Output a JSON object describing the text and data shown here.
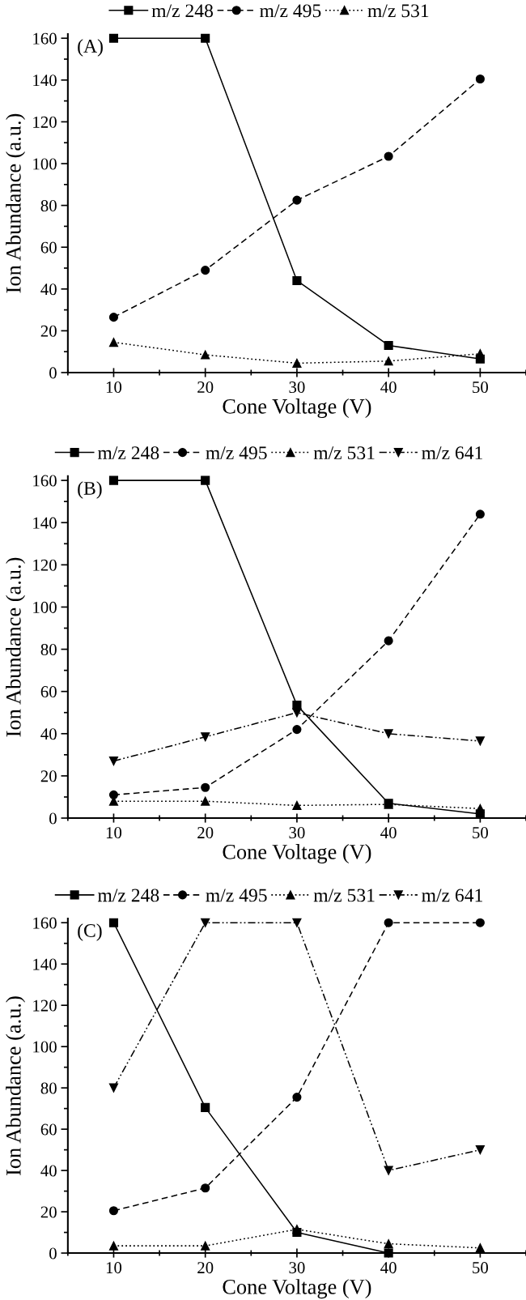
{
  "chart_data": [
    {
      "type": "line",
      "annotations": [
        "(A)"
      ],
      "xlabel": "Cone Voltage (V)",
      "ylabel": "Ion Abundance (a.u.)",
      "x": [
        10,
        20,
        30,
        40,
        50
      ],
      "xlim": [
        5,
        55
      ],
      "ylim": [
        0,
        162
      ],
      "xticks": [
        {
          "value": 5,
          "label": null
        },
        10,
        {
          "value": 15,
          "label": null
        },
        20,
        {
          "value": 25,
          "label": null
        },
        30,
        {
          "value": 35,
          "label": null
        },
        40,
        {
          "value": 45,
          "label": null
        },
        50,
        {
          "value": 55,
          "label": null
        }
      ],
      "yticks": [
        0,
        {
          "value": 10,
          "label": null
        },
        20,
        {
          "value": 30,
          "label": null
        },
        40,
        {
          "value": 50,
          "label": null
        },
        60,
        {
          "value": 70,
          "label": null
        },
        80,
        {
          "value": 90,
          "label": null
        },
        100,
        {
          "value": 110,
          "label": null
        },
        120,
        {
          "value": 130,
          "label": null
        },
        140,
        {
          "value": 150,
          "label": null
        },
        160
      ],
      "legend": "top",
      "grid": false,
      "series": [
        {
          "name": "m/z 248",
          "color": "#000000",
          "marker": "square",
          "line_style": "solid",
          "values": [
            160,
            160,
            44,
            13,
            6.5
          ]
        },
        {
          "name": "m/z 495",
          "color": "#000000",
          "marker": "circle",
          "line_style": "dashed",
          "values": [
            26.5,
            49,
            82.5,
            103.5,
            140.5
          ]
        },
        {
          "name": "m/z 531",
          "color": "#000000",
          "marker": "triangle",
          "line_style": "dotted",
          "values": [
            14.5,
            8.5,
            4.5,
            5.5,
            9
          ]
        }
      ]
    },
    {
      "type": "line",
      "annotations": [
        "(B)"
      ],
      "xlabel": "Cone Voltage (V)",
      "ylabel": "Ion Abundance (a.u.)",
      "x": [
        10,
        20,
        30,
        40,
        50
      ],
      "xlim": [
        5,
        55
      ],
      "ylim": [
        0,
        162
      ],
      "xticks": [
        {
          "value": 5,
          "label": null
        },
        10,
        {
          "value": 15,
          "label": null
        },
        20,
        {
          "value": 25,
          "label": null
        },
        30,
        {
          "value": 35,
          "label": null
        },
        40,
        {
          "value": 45,
          "label": null
        },
        50,
        {
          "value": 55,
          "label": null
        }
      ],
      "yticks": [
        0,
        {
          "value": 10,
          "label": null
        },
        20,
        {
          "value": 30,
          "label": null
        },
        40,
        {
          "value": 50,
          "label": null
        },
        60,
        {
          "value": 70,
          "label": null
        },
        80,
        {
          "value": 90,
          "label": null
        },
        100,
        {
          "value": 110,
          "label": null
        },
        120,
        {
          "value": 130,
          "label": null
        },
        140,
        {
          "value": 150,
          "label": null
        },
        160
      ],
      "legend": "top",
      "grid": false,
      "series": [
        {
          "name": "m/z 248",
          "color": "#000000",
          "marker": "square",
          "line_style": "solid",
          "values": [
            160,
            160,
            53.5,
            7,
            2
          ]
        },
        {
          "name": "m/z 495",
          "color": "#000000",
          "marker": "circle",
          "line_style": "dashed",
          "values": [
            11,
            14.5,
            42,
            84,
            144
          ]
        },
        {
          "name": "m/z 531",
          "color": "#000000",
          "marker": "triangle",
          "line_style": "dotted",
          "values": [
            8,
            8,
            6,
            6.5,
            4.5
          ]
        },
        {
          "name": "m/z 641",
          "color": "#000000",
          "marker": "triangle_down",
          "line_style": "dashdot",
          "values": [
            27,
            38.5,
            50,
            40,
            36.5
          ]
        }
      ]
    },
    {
      "type": "line",
      "annotations": [
        "(C)"
      ],
      "xlabel": "Cone Voltage (V)",
      "ylabel": "Ion Abundance (a.u.)",
      "x": [
        10,
        20,
        30,
        40,
        50
      ],
      "xlim": [
        5,
        55
      ],
      "ylim": [
        0,
        162
      ],
      "xticks": [
        {
          "value": 5,
          "label": null
        },
        10,
        {
          "value": 15,
          "label": null
        },
        20,
        {
          "value": 25,
          "label": null
        },
        30,
        {
          "value": 35,
          "label": null
        },
        40,
        {
          "value": 45,
          "label": null
        },
        50,
        {
          "value": 55,
          "label": null
        }
      ],
      "yticks": [
        0,
        {
          "value": 10,
          "label": null
        },
        20,
        {
          "value": 30,
          "label": null
        },
        40,
        {
          "value": 50,
          "label": null
        },
        60,
        {
          "value": 70,
          "label": null
        },
        80,
        {
          "value": 90,
          "label": null
        },
        100,
        {
          "value": 110,
          "label": null
        },
        120,
        {
          "value": 130,
          "label": null
        },
        140,
        {
          "value": 150,
          "label": null
        },
        160
      ],
      "legend": "top",
      "grid": false,
      "series": [
        {
          "name": "m/z 248",
          "color": "#000000",
          "marker": "square",
          "line_style": "solid",
          "values": [
            160,
            70.5,
            10,
            0,
            null
          ]
        },
        {
          "name": "m/z 495",
          "color": "#000000",
          "marker": "circle",
          "line_style": "dashed",
          "values": [
            20.5,
            31.5,
            75.5,
            160,
            160
          ]
        },
        {
          "name": "m/z 531",
          "color": "#000000",
          "marker": "triangle",
          "line_style": "dotted",
          "values": [
            3.5,
            3.5,
            11.5,
            4.5,
            2.5
          ]
        },
        {
          "name": "m/z 641",
          "color": "#000000",
          "marker": "triangle_down",
          "line_style": "dashdot",
          "values": [
            80,
            160,
            160,
            40,
            50
          ]
        }
      ]
    }
  ]
}
